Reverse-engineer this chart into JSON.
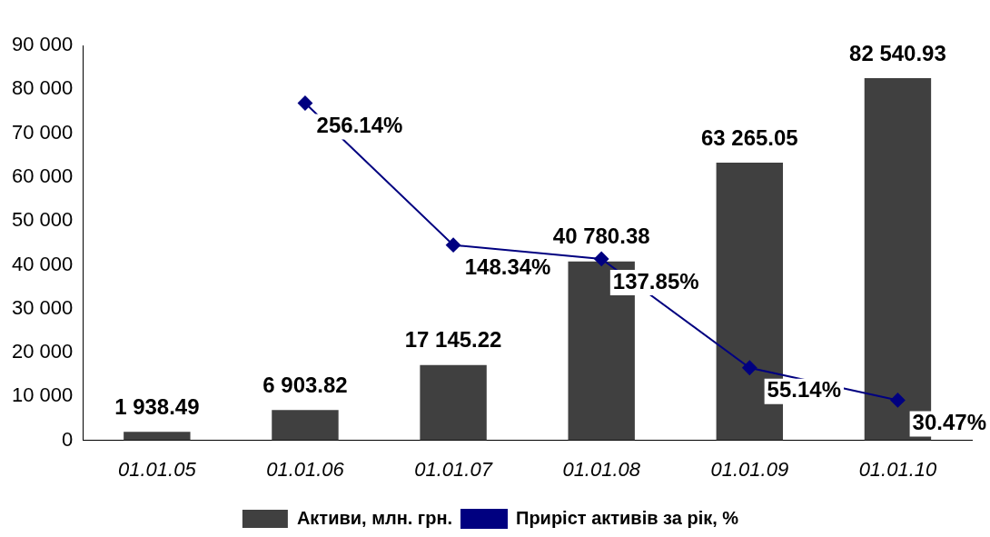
{
  "chart_data": {
    "type": "bar",
    "categories": [
      "01.01.05",
      "01.01.06",
      "01.01.07",
      "01.01.08",
      "01.01.09",
      "01.01.10"
    ],
    "ylim": [
      0,
      90000
    ],
    "yticks": [
      {
        "value": 0,
        "label": "0"
      },
      {
        "value": 10000,
        "label": "10 000"
      },
      {
        "value": 20000,
        "label": "20 000"
      },
      {
        "value": 30000,
        "label": "30 000"
      },
      {
        "value": 40000,
        "label": "40 000"
      },
      {
        "value": 50000,
        "label": "50 000"
      },
      {
        "value": 60000,
        "label": "60 000"
      },
      {
        "value": 70000,
        "label": "70 000"
      },
      {
        "value": 80000,
        "label": "80 000"
      },
      {
        "value": 90000,
        "label": "90 000"
      }
    ],
    "y2lim": [
      0,
      300
    ],
    "series": [
      {
        "name": "Активи, млн. грн.",
        "color": "#404040",
        "values": [
          1938.49,
          6903.82,
          17145.22,
          40780.38,
          63265.05,
          82540.93
        ],
        "value_labels": [
          "1 938.49",
          "6 903.82",
          "17 145.22",
          "40 780.38",
          "63 265.05",
          "82 540.93"
        ]
      },
      {
        "name": "Приріст активів за рік, %",
        "type": "line",
        "axis": "y2",
        "color": "#000080",
        "marker": "diamond",
        "values": [
          null,
          256.14,
          148.34,
          137.85,
          55.14,
          30.47
        ],
        "value_labels": [
          null,
          "256.14%",
          "148.34%",
          "137.85%",
          "55.14%",
          "30.47%"
        ]
      }
    ],
    "legend": "bottom",
    "grid": false
  }
}
